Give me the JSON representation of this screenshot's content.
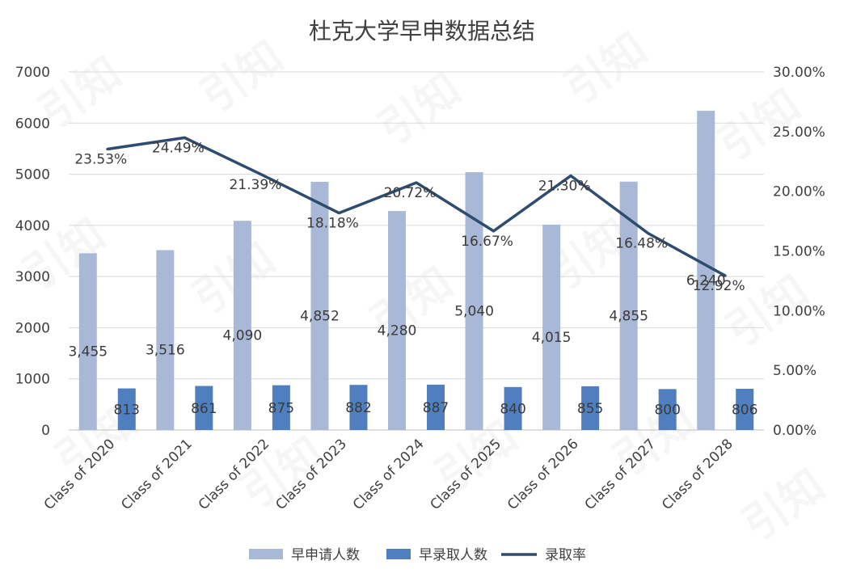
{
  "chart_data": {
    "type": "bar",
    "title": "杜克大学早申数据总结",
    "categories": [
      "Class of 2020",
      "Class of 2021",
      "Class of 2022",
      "Class of 2023",
      "Class of 2024",
      "Class of 2025",
      "Class of 2026",
      "Class of 2027",
      "Class of 2028"
    ],
    "series": [
      {
        "name": "早申请人数",
        "type": "bar",
        "axis": "left",
        "color": "#a9b8d6",
        "values": [
          3455,
          3516,
          4090,
          4852,
          4280,
          5040,
          4015,
          4855,
          6240
        ],
        "labels": [
          "3,455",
          "3,516",
          "4,090",
          "4,852",
          "4,280",
          "5,040",
          "4,015",
          "4,855",
          "6,240"
        ]
      },
      {
        "name": "早录取人数",
        "type": "bar",
        "axis": "left",
        "color": "#4f7fbf",
        "values": [
          813,
          861,
          875,
          882,
          887,
          840,
          855,
          800,
          806
        ],
        "labels": [
          "813",
          "861",
          "875",
          "882",
          "887",
          "840",
          "855",
          "800",
          "806"
        ]
      },
      {
        "name": "录取率",
        "type": "line",
        "axis": "right",
        "color": "#2f4c6e",
        "values": [
          23.53,
          24.49,
          21.39,
          18.18,
          20.72,
          16.67,
          21.3,
          16.48,
          12.92
        ],
        "labels": [
          "23.53%",
          "24.49%",
          "21.39%",
          "18.18%",
          "20.72%",
          "16.67%",
          "21.30%",
          "16.48%",
          "12.92%"
        ]
      }
    ],
    "y_left": {
      "range": [
        0,
        7000
      ],
      "ticks": [
        "0",
        "1000",
        "2000",
        "3000",
        "4000",
        "5000",
        "6000",
        "7000"
      ]
    },
    "y_right": {
      "range": [
        0,
        30
      ],
      "ticks": [
        "0.00%",
        "5.00%",
        "10.00%",
        "15.00%",
        "20.00%",
        "25.00%",
        "30.00%"
      ]
    },
    "grid": true,
    "legend_position": "bottom",
    "watermark": "引知"
  }
}
